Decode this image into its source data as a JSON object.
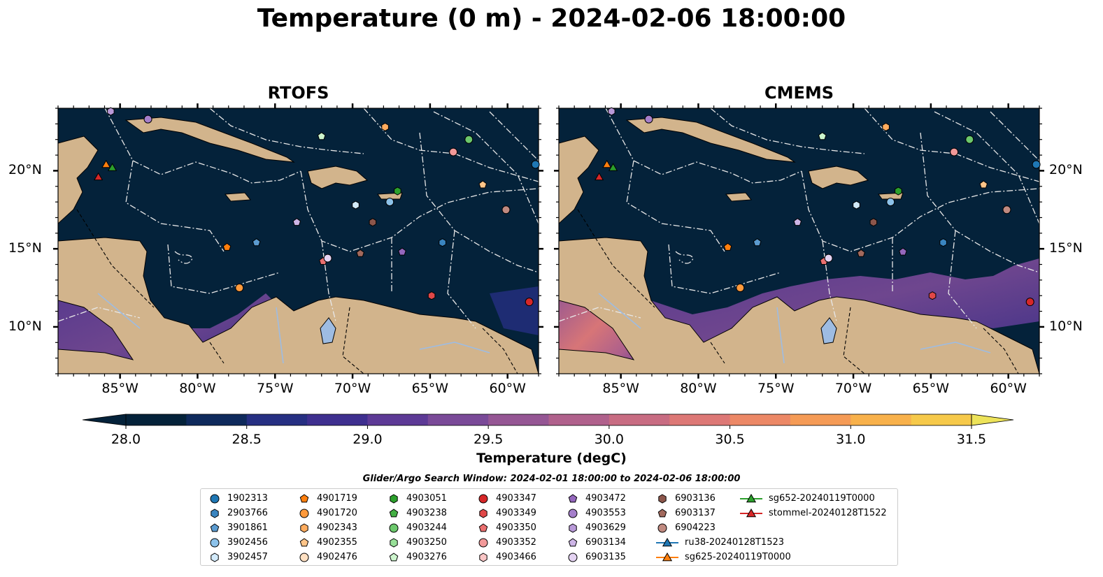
{
  "title": "Temperature (0 m) - 2024-02-06 18:00:00",
  "panels": [
    {
      "title": "RTOFS"
    },
    {
      "title": "CMEMS"
    }
  ],
  "axes": {
    "lon_ticks": [
      "85°W",
      "80°W",
      "75°W",
      "70°W",
      "65°W",
      "60°W"
    ],
    "lat_ticks": [
      "20°N",
      "15°N",
      "10°N"
    ]
  },
  "colorbar": {
    "label": "Temperature (degC)",
    "min": 28.0,
    "max": 31.5,
    "ticks": [
      "28.0",
      "28.5",
      "29.0",
      "29.5",
      "30.0",
      "30.5",
      "31.0",
      "31.5"
    ],
    "colors": [
      "#04223a",
      "#0f2a5c",
      "#262f82",
      "#3e2f8f",
      "#5d3a96",
      "#7a4a98",
      "#955694",
      "#b0618c",
      "#c86c82",
      "#dd7876",
      "#ec8866",
      "#f59b56",
      "#f8b14b",
      "#f6c94a",
      "#ede35a"
    ]
  },
  "legend": {
    "title": "Glider/Argo Search Window: 2024-02-01 18:00:00 to 2024-02-06 18:00:00",
    "items": [
      {
        "label": "1902313",
        "marker": "circle",
        "color": "#1f77b4"
      },
      {
        "label": "2903766",
        "marker": "hexagon",
        "color": "#3a85c0"
      },
      {
        "label": "3901861",
        "marker": "pentagon",
        "color": "#5b9bd0"
      },
      {
        "label": "3902456",
        "marker": "circle",
        "color": "#8cc2ea"
      },
      {
        "label": "3902457",
        "marker": "hexagon",
        "color": "#d2eafa"
      },
      {
        "label": "4901719",
        "marker": "pentagon",
        "color": "#ff7f0e"
      },
      {
        "label": "4901720",
        "marker": "circle",
        "color": "#ff9a3c"
      },
      {
        "label": "4902343",
        "marker": "hexagon",
        "color": "#ffac5e"
      },
      {
        "label": "4902355",
        "marker": "pentagon",
        "color": "#ffc589"
      },
      {
        "label": "4902476",
        "marker": "circle",
        "color": "#ffe0c2"
      },
      {
        "label": "4903051",
        "marker": "hexagon",
        "color": "#2ca02c"
      },
      {
        "label": "4903238",
        "marker": "pentagon",
        "color": "#44b044"
      },
      {
        "label": "4903244",
        "marker": "circle",
        "color": "#6cc86c"
      },
      {
        "label": "4903250",
        "marker": "hexagon",
        "color": "#98e098"
      },
      {
        "label": "4903276",
        "marker": "pentagon",
        "color": "#cdf5cd"
      },
      {
        "label": "4903347",
        "marker": "circle",
        "color": "#d62728"
      },
      {
        "label": "4903349",
        "marker": "hexagon",
        "color": "#e04848"
      },
      {
        "label": "4903350",
        "marker": "pentagon",
        "color": "#ea6f6f"
      },
      {
        "label": "4903352",
        "marker": "circle",
        "color": "#f29999"
      },
      {
        "label": "4903466",
        "marker": "hexagon",
        "color": "#fac6c6"
      },
      {
        "label": "4903472",
        "marker": "pentagon",
        "color": "#9467bd"
      },
      {
        "label": "4903553",
        "marker": "circle",
        "color": "#a57fcb"
      },
      {
        "label": "4903629",
        "marker": "hexagon",
        "color": "#b899d8"
      },
      {
        "label": "6903134",
        "marker": "pentagon",
        "color": "#cdb5e6"
      },
      {
        "label": "6903135",
        "marker": "circle",
        "color": "#e4d3f2"
      },
      {
        "label": "6903136",
        "marker": "hexagon",
        "color": "#8c564b"
      },
      {
        "label": "6903137",
        "marker": "pentagon",
        "color": "#a2695d"
      },
      {
        "label": "6904223",
        "marker": "circle",
        "color": "#c08a80"
      },
      {
        "label": "ru38-20240128T1523",
        "marker": "triangle-line",
        "color": "#1f77b4"
      },
      {
        "label": "sg625-20240119T0000",
        "marker": "triangle-line",
        "color": "#ff7f0e"
      },
      {
        "label": "sg652-20240119T0000",
        "marker": "triangle-line",
        "color": "#2ca02c"
      },
      {
        "label": "stommel-20240128T1522",
        "marker": "triangle-line",
        "color": "#d62728"
      }
    ]
  },
  "map_extent": {
    "lon": [
      -89,
      -58
    ],
    "lat": [
      7,
      24
    ]
  },
  "observations": [
    {
      "id": "1902313",
      "lon": -58.2,
      "lat": 20.4
    },
    {
      "id": "4903629",
      "lon": -85.6,
      "lat": 23.8
    },
    {
      "id": "4903553",
      "lon": -83.2,
      "lat": 23.3
    },
    {
      "id": "4903276",
      "lon": -72.0,
      "lat": 22.2
    },
    {
      "id": "4902343",
      "lon": -67.9,
      "lat": 22.8
    },
    {
      "id": "4903244",
      "lon": -62.5,
      "lat": 22.0
    },
    {
      "id": "4903352",
      "lon": -63.5,
      "lat": 21.2
    },
    {
      "id": "4903051",
      "lon": -67.1,
      "lat": 18.7
    },
    {
      "id": "4902355",
      "lon": -61.6,
      "lat": 19.1
    },
    {
      "id": "3902456",
      "lon": -67.6,
      "lat": 18.0
    },
    {
      "id": "3902457",
      "lon": -69.8,
      "lat": 17.8
    },
    {
      "id": "6904223",
      "lon": -60.1,
      "lat": 17.5
    },
    {
      "id": "6903136",
      "lon": -68.7,
      "lat": 16.7
    },
    {
      "id": "6903134",
      "lon": -73.6,
      "lat": 16.7
    },
    {
      "id": "3901861",
      "lon": -76.2,
      "lat": 15.4
    },
    {
      "id": "4901719",
      "lon": -78.1,
      "lat": 15.1
    },
    {
      "id": "6903137",
      "lon": -69.5,
      "lat": 14.7
    },
    {
      "id": "4903472",
      "lon": -66.8,
      "lat": 14.8
    },
    {
      "id": "2903766",
      "lon": -64.2,
      "lat": 15.4
    },
    {
      "id": "4903350",
      "lon": -71.9,
      "lat": 14.2
    },
    {
      "id": "6903135",
      "lon": -71.6,
      "lat": 14.4
    },
    {
      "id": "4901720",
      "lon": -77.3,
      "lat": 12.5
    },
    {
      "id": "4903349",
      "lon": -64.9,
      "lat": 12.0
    },
    {
      "id": "4903347",
      "lon": -58.6,
      "lat": 11.6
    },
    {
      "id": "sg625-20240119T0000",
      "lon": -85.9,
      "lat": 20.4
    },
    {
      "id": "sg652-20240119T0000",
      "lon": -85.5,
      "lat": 20.2
    },
    {
      "id": "stommel-20240128T1522",
      "lon": -86.4,
      "lat": 19.6
    }
  ]
}
